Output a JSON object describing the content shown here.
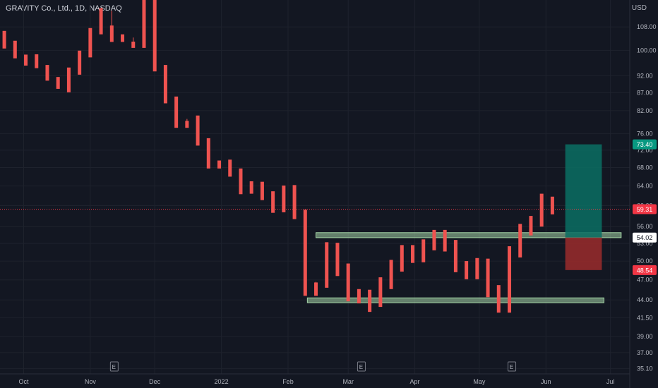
{
  "header": {
    "symbol": "GRAVITY Co., Ltd., 1D, NASDAQ",
    "currency": "USD"
  },
  "price_axis": {
    "ticks": [
      "108.00",
      "100.00",
      "92.00",
      "87.00",
      "82.00",
      "76.00",
      "72.00",
      "68.00",
      "64.00",
      "60.00",
      "56.00",
      "53.00",
      "50.00",
      "47.00",
      "44.00",
      "41.50",
      "39.00",
      "37.00",
      "35.10"
    ]
  },
  "time_axis": {
    "labels": [
      "Oct",
      "Nov",
      "Dec",
      "2022",
      "Feb",
      "Mar",
      "Apr",
      "May",
      "Jun",
      "Jul"
    ]
  },
  "event_markers": [
    "E",
    "E",
    "E"
  ],
  "price_labels": {
    "target": {
      "text": "73.40",
      "color": "#089981"
    },
    "last": {
      "text": "59.31",
      "color": "#f23645"
    },
    "entry": {
      "text": "54.02",
      "color": "#ffffff"
    },
    "stop": {
      "text": "48.54",
      "color": "#f23645"
    }
  },
  "colors": {
    "up": "#26a69a",
    "down": "#ef5350",
    "support_zone": "#a5d6a7",
    "profit_zone": "#0a6e63",
    "loss_zone": "#9b2c2c"
  },
  "chart_data": {
    "type": "candlestick",
    "title": "GRAVITY Co., Ltd., 1D, NASDAQ",
    "xlabel": "",
    "ylabel": "USD",
    "ylim": [
      34.5,
      118
    ],
    "scale": "log",
    "x_range": [
      "2021-09-20",
      "2022-07-10"
    ],
    "candles": [
      [
        "2021-09-22",
        106.6,
        105.6,
        101.6,
        100.6
      ],
      [
        "2021-09-27",
        103.2,
        101.6,
        98.3,
        97.4
      ],
      [
        "2021-10-02",
        98.6,
        97.4,
        96.1,
        95.1
      ],
      [
        "2021-10-07",
        98.7,
        97.5,
        95.4,
        94.3
      ],
      [
        "2021-10-12",
        95.3,
        94.3,
        91.6,
        90.5
      ],
      [
        "2021-10-17",
        91.6,
        90.5,
        89.1,
        88.1
      ],
      [
        "2021-10-22",
        94.5,
        88.1,
        93.4,
        87.1
      ],
      [
        "2021-10-27",
        99.9,
        93.4,
        98.8,
        92.3
      ],
      [
        "2021-11-01",
        107.6,
        98.8,
        106.5,
        97.7
      ],
      [
        "2021-11-06",
        114.9,
        106.5,
        113.9,
        105.4
      ],
      [
        "2021-11-11",
        108.5,
        113.9,
        103.8,
        102.8
      ],
      [
        "2021-11-16",
        105.4,
        103.8,
        104.3,
        102.8
      ],
      [
        "2021-11-21",
        102.9,
        104.3,
        101.8,
        100.8
      ],
      [
        "2021-11-26",
        121.5,
        101.8,
        120.5,
        100.8
      ],
      [
        "2021-12-01",
        121.6,
        120.5,
        94.3,
        93.3
      ],
      [
        "2021-12-06",
        95.3,
        94.3,
        85.0,
        84.0
      ],
      [
        "2021-12-11",
        85.9,
        85.0,
        78.4,
        77.5
      ],
      [
        "2021-12-16",
        79.3,
        78.4,
        79.8,
        77.5
      ],
      [
        "2021-12-21",
        80.7,
        79.8,
        74.0,
        73.1
      ],
      [
        "2021-12-26",
        74.9,
        74.0,
        68.7,
        67.8
      ],
      [
        "2021-12-31",
        69.6,
        68.7,
        68.8,
        67.8
      ],
      [
        "2022-01-05",
        69.8,
        68.8,
        66.9,
        66.0
      ],
      [
        "2022-01-10",
        67.8,
        66.9,
        63.2,
        62.3
      ],
      [
        "2022-01-15",
        65.0,
        63.2,
        64.0,
        62.4
      ],
      [
        "2022-01-20",
        64.9,
        64.0,
        62.0,
        61.1
      ],
      [
        "2022-01-25",
        62.9,
        62.0,
        59.5,
        58.6
      ],
      [
        "2022-01-30",
        64.1,
        59.5,
        63.1,
        58.7
      ],
      [
        "2022-02-04",
        64.2,
        63.1,
        58.3,
        57.4
      ],
      [
        "2022-02-09",
        59.2,
        58.3,
        45.6,
        44.6
      ],
      [
        "2022-02-14",
        46.6,
        45.6,
        46.7,
        44.6
      ],
      [
        "2022-02-19",
        53.2,
        46.7,
        52.2,
        45.8
      ],
      [
        "2022-02-24",
        53.1,
        52.2,
        48.6,
        47.6
      ],
      [
        "2022-03-01",
        49.6,
        48.6,
        44.7,
        43.8
      ],
      [
        "2022-03-06",
        45.6,
        44.7,
        44.5,
        43.5
      ],
      [
        "2022-03-11",
        45.5,
        44.5,
        43.8,
        42.3
      ],
      [
        "2022-03-16",
        47.4,
        43.8,
        46.5,
        43.0
      ],
      [
        "2022-03-21",
        50.2,
        46.5,
        49.2,
        45.6
      ],
      [
        "2022-03-26",
        52.7,
        49.2,
        51.7,
        48.3
      ],
      [
        "2022-03-31",
        52.7,
        51.7,
        50.7,
        49.7
      ],
      [
        "2022-04-05",
        53.7,
        50.7,
        52.7,
        49.8
      ],
      [
        "2022-04-10",
        55.4,
        52.7,
        54.4,
        51.8
      ],
      [
        "2022-04-15",
        55.4,
        54.4,
        52.6,
        51.6
      ],
      [
        "2022-04-20",
        53.6,
        52.6,
        49.1,
        48.2
      ],
      [
        "2022-04-25",
        50.0,
        49.1,
        48.0,
        47.1
      ],
      [
        "2022-04-30",
        50.5,
        48.0,
        49.5,
        47.1
      ],
      [
        "2022-05-05",
        50.4,
        49.5,
        45.3,
        44.4
      ],
      [
        "2022-05-10",
        46.2,
        45.3,
        43.0,
        42.2
      ],
      [
        "2022-05-15",
        52.5,
        43.0,
        51.5,
        42.2
      ],
      [
        "2022-05-20",
        56.5,
        51.5,
        55.4,
        50.6
      ],
      [
        "2022-05-25",
        58.0,
        55.4,
        57.0,
        54.4
      ],
      [
        "2022-05-30",
        62.4,
        57.0,
        61.2,
        56.0
      ],
      [
        "2022-06-04",
        61.8,
        61.2,
        59.31,
        58.3
      ]
    ],
    "annotations": [
      {
        "type": "zone",
        "label": "support",
        "range": [
          43.6,
          44.3
        ],
        "from": "2022-02-10",
        "to": "2022-06-28"
      },
      {
        "type": "zone",
        "label": "resistance",
        "range": [
          54.0,
          54.9
        ],
        "from": "2022-02-14",
        "to": "2022-07-06"
      },
      {
        "type": "long_position",
        "entry": 54.02,
        "target": 73.4,
        "stop": 48.54,
        "from": "2022-06-10",
        "to": "2022-06-27"
      },
      {
        "type": "last_price_line",
        "value": 59.31
      }
    ]
  }
}
